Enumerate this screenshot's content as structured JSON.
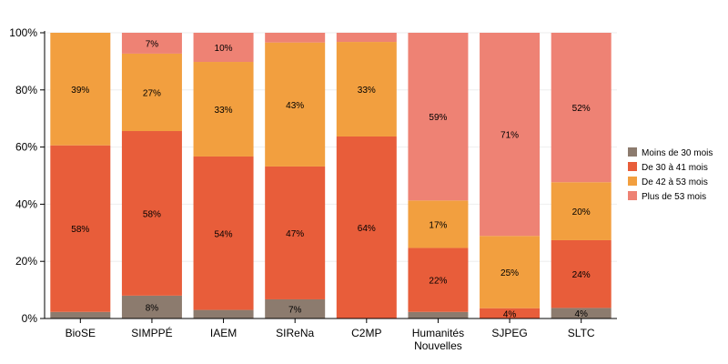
{
  "chart_data": {
    "type": "bar",
    "stacked": true,
    "normalized": true,
    "categories": [
      "BioSE",
      "SIMPPÉ",
      "IAEM",
      "SIReNa",
      "C2MP",
      "Humanités Nouvelles",
      "SJPEG",
      "SLTC"
    ],
    "series": [
      {
        "name": "Moins de 30 mois",
        "color": "#8c7b6e",
        "values": [
          2.3,
          8,
          3,
          6.7,
          0,
          2.3,
          0,
          3.7
        ]
      },
      {
        "name": "De 30 à 41 mois",
        "color": "#e85d3a",
        "values": [
          58.3,
          57.6,
          53.7,
          46.5,
          63.7,
          22.4,
          3.6,
          23.7
        ]
      },
      {
        "name": "De 42 à 53 mois",
        "color": "#f29f3f",
        "values": [
          39.4,
          27.1,
          33.1,
          43.4,
          33.1,
          16.6,
          25.3,
          20.3
        ]
      },
      {
        "name": "Plus de 53 mois",
        "color": "#ee8274",
        "values": [
          0,
          7.3,
          10.2,
          3.4,
          3.2,
          58.7,
          71.1,
          52.3
        ]
      }
    ],
    "ylim": [
      0,
      100
    ],
    "yticks": [
      "0%",
      "20%",
      "40%",
      "60%",
      "80%",
      "100%"
    ],
    "grid": true,
    "legend": "right"
  }
}
